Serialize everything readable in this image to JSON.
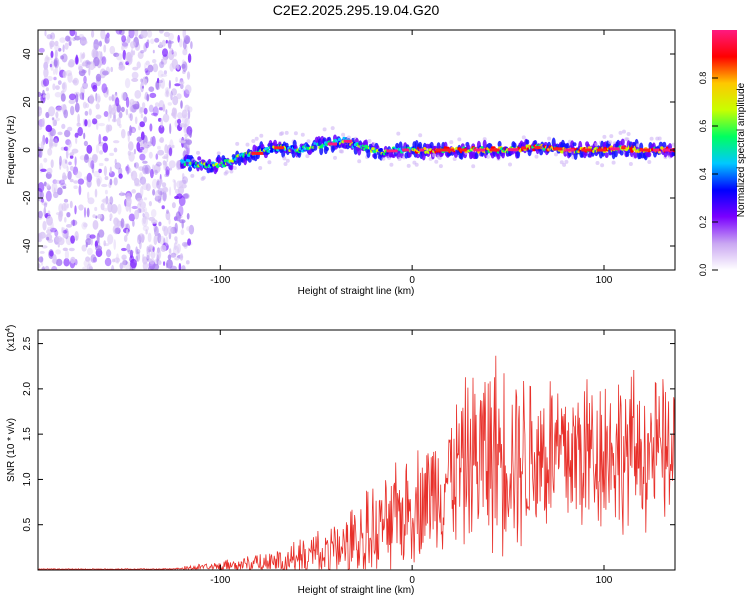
{
  "title": "C2E2.2025.295.19.04.G20",
  "chart_data": [
    {
      "type": "heatmap",
      "xlabel": "Height of straight line (km)",
      "ylabel": "Frequency (Hz)",
      "xlim": [
        -195,
        137
      ],
      "ylim": [
        -50,
        50
      ],
      "xticks": [
        -100,
        0,
        100
      ],
      "yticks": [
        -40,
        -20,
        0,
        20,
        40
      ],
      "noise_region_x": [
        -195,
        -115
      ],
      "track": {
        "x": [
          -120,
          -110,
          -100,
          -95,
          -90,
          -85,
          -80,
          -75,
          -70,
          -65,
          -60,
          -55,
          -50,
          -45,
          -40,
          -35,
          -30,
          -25,
          -20,
          -15,
          -10,
          -5,
          0,
          10,
          20,
          30,
          40,
          50,
          60,
          70,
          80,
          90,
          100,
          110,
          120,
          130,
          137
        ],
        "freq": [
          -5,
          -6,
          -6,
          -5,
          -3,
          -2,
          -1,
          0,
          1,
          1,
          0,
          1,
          2,
          2,
          3,
          4,
          2,
          1,
          0,
          -1,
          0,
          0,
          0,
          0,
          0,
          0,
          0,
          0,
          1,
          1,
          0,
          0,
          0,
          1,
          0,
          0,
          0
        ]
      },
      "colorbar": {
        "label": "Normalized spectral amplitude",
        "range": [
          0,
          1
        ],
        "ticks": [
          "0.0",
          "0.2",
          "0.4",
          "0.6",
          "0.8"
        ],
        "colormap": [
          "#ffffff",
          "#c9a6f2",
          "#7a00ff",
          "#0000ff",
          "#00c8ff",
          "#00ff60",
          "#c8ff00",
          "#ffc800",
          "#ff0000",
          "#ff1a80"
        ]
      }
    },
    {
      "type": "line",
      "xlabel": "Height of straight line (km)",
      "ylabel": "SNR (10 * v/v)",
      "scale_note": "(x10",
      "scale_exp": "4",
      "xlim": [
        -195,
        137
      ],
      "ylim": [
        0,
        2.65
      ],
      "xticks": [
        -100,
        0,
        100
      ],
      "yticks": [
        "0.5",
        "1.0",
        "1.5",
        "2.0",
        "2.5"
      ],
      "line_color": "#e8302a",
      "envelope": {
        "x": [
          -195,
          -130,
          -110,
          -90,
          -70,
          -50,
          -40,
          -30,
          -20,
          -10,
          0,
          10,
          20,
          30,
          40,
          50,
          60,
          70,
          80,
          90,
          100,
          110,
          120,
          130,
          137
        ],
        "base": [
          0.0,
          0.0,
          0.03,
          0.06,
          0.1,
          0.18,
          0.22,
          0.28,
          0.4,
          0.55,
          0.7,
          0.85,
          1.05,
          1.2,
          1.3,
          1.3,
          1.25,
          1.3,
          1.25,
          1.3,
          1.35,
          1.3,
          1.3,
          1.3,
          1.25
        ],
        "amp": [
          0.01,
          0.01,
          0.04,
          0.08,
          0.15,
          0.28,
          0.35,
          0.45,
          0.55,
          0.6,
          0.65,
          0.7,
          0.85,
          1.0,
          1.2,
          1.1,
          1.1,
          1.05,
          1.0,
          1.05,
          0.95,
          0.95,
          0.9,
          0.85,
          0.8
        ]
      }
    }
  ]
}
